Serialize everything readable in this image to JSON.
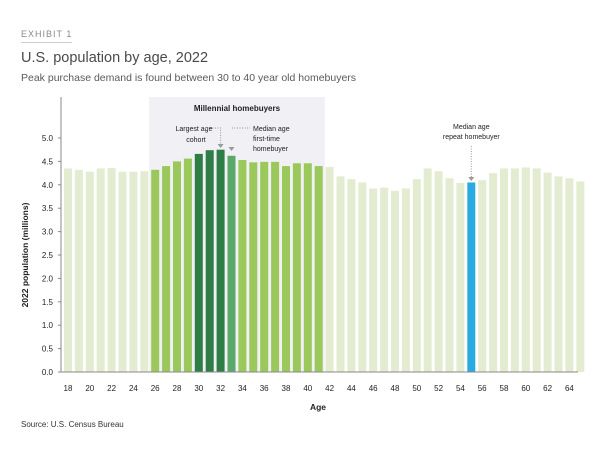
{
  "header": {
    "exhibit": "EXHIBIT 1",
    "title": "U.S. population by age, 2022",
    "subtitle": "Peak purchase demand is found between 30 to 40 year old homebuyers"
  },
  "source": "Source: U.S. Census Bureau",
  "colors": {
    "base": "#e3ecd0",
    "millennial": "#9ac85a",
    "largest": "#2e7d46",
    "median_first": "#5aa86a",
    "median_repeat": "#29abe2",
    "highlight_bg": "#f0f0f5"
  },
  "chart_data": {
    "type": "bar",
    "title": "",
    "xlabel": "Age",
    "ylabel": "2022 population (millions)",
    "ylim": [
      0,
      5.0
    ],
    "yticks": [
      "0.0",
      "0.5",
      "1.0",
      "1.5",
      "2.0",
      "2.5",
      "3.0",
      "3.5",
      "4.0",
      "4.5",
      "5.0"
    ],
    "xticks": [
      "18",
      "20",
      "22",
      "24",
      "26",
      "28",
      "30",
      "32",
      "34",
      "36",
      "38",
      "40",
      "42",
      "44",
      "46",
      "48",
      "50",
      "52",
      "54",
      "56",
      "58",
      "60",
      "62",
      "64"
    ],
    "categories": [
      18,
      19,
      20,
      21,
      22,
      23,
      24,
      25,
      26,
      27,
      28,
      29,
      30,
      31,
      32,
      33,
      34,
      35,
      36,
      37,
      38,
      39,
      40,
      41,
      42,
      43,
      44,
      45,
      46,
      47,
      48,
      49,
      50,
      51,
      52,
      53,
      54,
      55,
      56,
      57,
      58,
      59,
      60,
      61,
      62,
      63,
      64,
      65
    ],
    "values": [
      4.35,
      4.32,
      4.28,
      4.35,
      4.36,
      4.28,
      4.28,
      4.29,
      4.32,
      4.4,
      4.5,
      4.56,
      4.66,
      4.74,
      4.75,
      4.62,
      4.53,
      4.48,
      4.49,
      4.49,
      4.4,
      4.46,
      4.46,
      4.4,
      4.38,
      4.18,
      4.12,
      4.05,
      3.92,
      3.94,
      3.87,
      3.92,
      4.12,
      4.35,
      4.29,
      4.14,
      4.04,
      4.05,
      4.1,
      4.25,
      4.35,
      4.35,
      4.37,
      4.35,
      4.26,
      4.18,
      4.14,
      4.07
    ],
    "highlight_region": {
      "label": "Millennial homebuyers",
      "from_age": 26,
      "to_age": 41
    },
    "annotations": [
      {
        "label_lines": [
          "Largest age",
          "cohort"
        ],
        "age": 32
      },
      {
        "label_lines": [
          "Median age",
          "first-time",
          "homebuyer"
        ],
        "age": 33
      },
      {
        "label_lines": [
          "Median age",
          "repeat homebuyer"
        ],
        "age": 55
      }
    ],
    "grid": false,
    "legend": "none"
  }
}
